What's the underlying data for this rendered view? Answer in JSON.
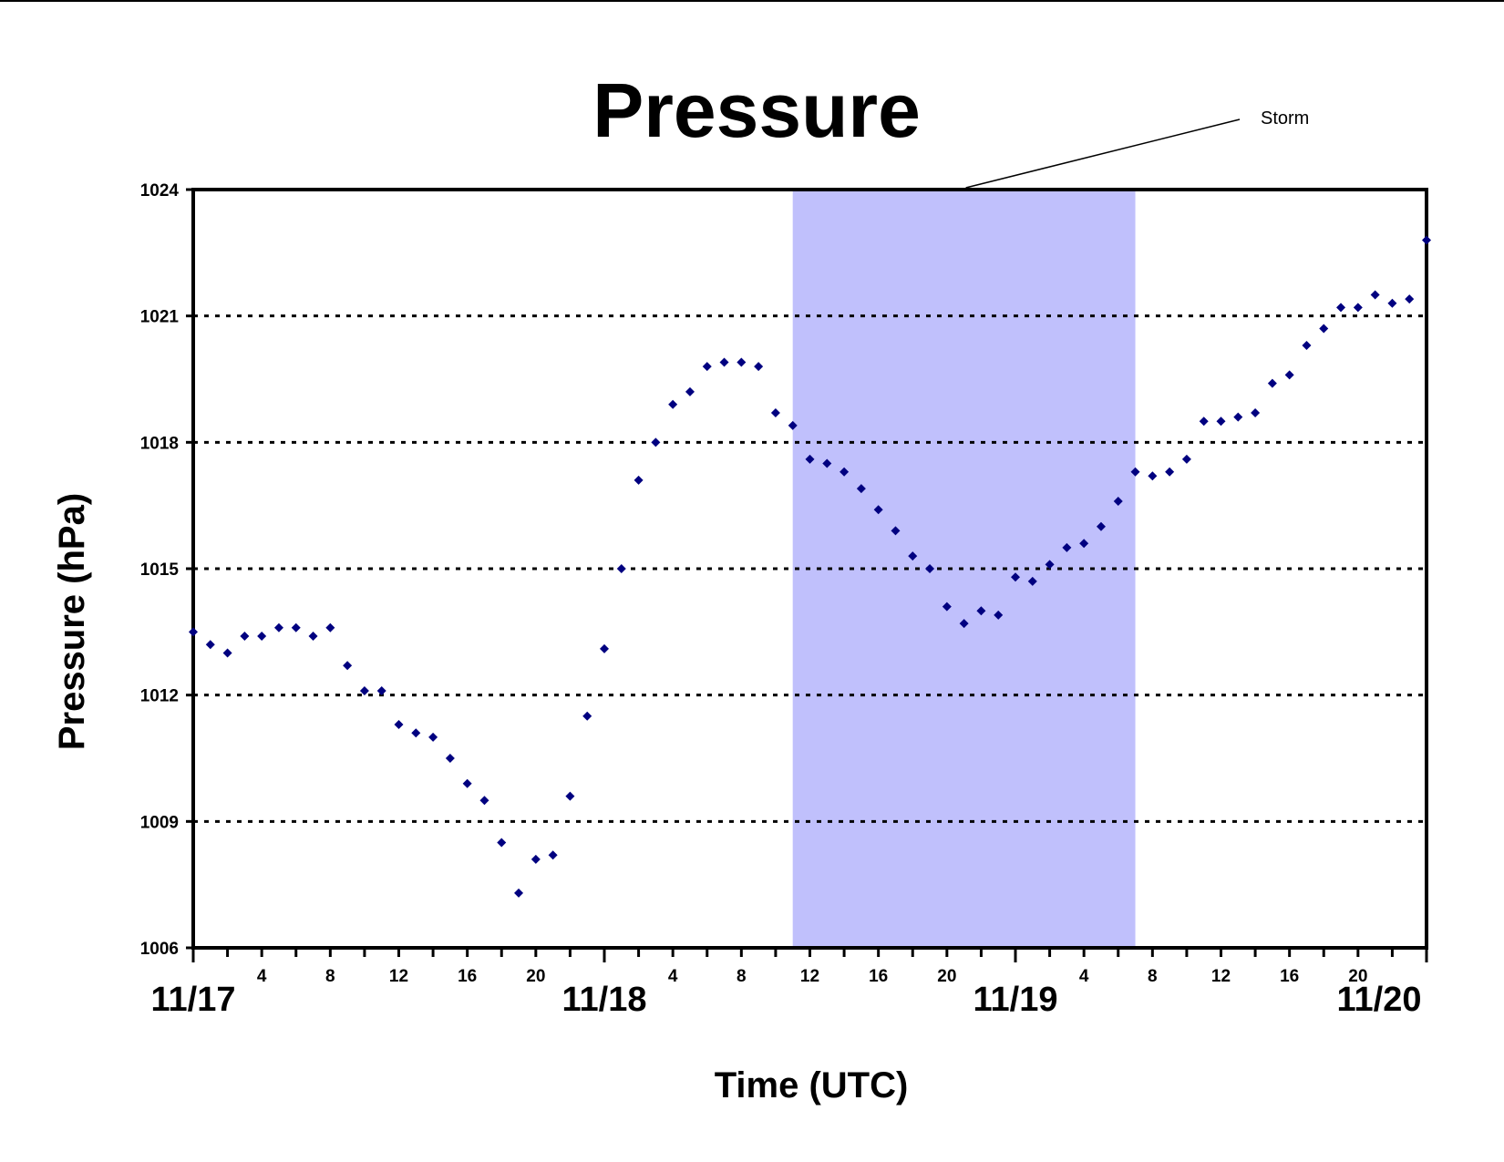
{
  "chart_data": {
    "type": "scatter",
    "title": "Pressure",
    "xlabel": "Time (UTC)",
    "ylabel": "Pressure (hPa)",
    "ylim": [
      1006,
      1024
    ],
    "yticks": [
      1006,
      1009,
      1012,
      1015,
      1018,
      1021,
      1024
    ],
    "x_start": "11/17 00:00",
    "x_hours": 72,
    "hour_tick_labels": [
      "4",
      "8",
      "12",
      "16",
      "20"
    ],
    "day_labels": [
      "11/17",
      "11/18",
      "11/19",
      "11/20"
    ],
    "grid": "horizontal dotted",
    "shaded_region": {
      "label": "Storm",
      "start_hour": 35,
      "end_hour": 55,
      "color": "#c0c0fc"
    },
    "marker_color": "#000080",
    "series": [
      {
        "x": [
          0,
          1,
          2,
          3,
          4,
          5,
          6,
          7,
          8,
          9,
          10,
          11,
          12,
          13,
          14,
          15,
          16,
          17,
          18,
          19,
          20,
          21,
          22,
          23,
          24,
          25,
          26,
          27,
          28,
          29,
          30,
          31,
          32,
          33,
          34,
          35,
          36,
          37,
          38,
          39,
          40,
          41,
          42,
          43,
          44,
          45,
          46,
          47,
          48,
          49,
          50,
          51,
          52,
          53,
          54,
          55,
          56,
          57,
          58,
          59,
          60,
          61,
          62,
          63,
          64,
          65,
          66,
          67,
          68,
          69,
          70,
          71,
          72
        ],
        "y": [
          1013.5,
          1013.2,
          1013.0,
          1013.4,
          1013.4,
          1013.6,
          1013.6,
          1013.4,
          1013.6,
          1012.7,
          1012.1,
          1012.1,
          1011.3,
          1011.1,
          1011.0,
          1010.5,
          1009.9,
          1009.5,
          1008.5,
          1007.3,
          1008.1,
          1008.2,
          1009.6,
          1011.5,
          1013.1,
          1015.0,
          1017.1,
          1018.0,
          1018.9,
          1019.2,
          1019.8,
          1019.9,
          1019.9,
          1019.8,
          1018.7,
          1018.4,
          1017.6,
          1017.5,
          1017.3,
          1016.9,
          1016.4,
          1015.9,
          1015.3,
          1015.0,
          1014.1,
          1013.7,
          1014.0,
          1013.9,
          1014.8,
          1014.7,
          1015.1,
          1015.5,
          1015.6,
          1016.0,
          1016.6,
          1017.3,
          1017.2,
          1017.3,
          1017.6,
          1018.5,
          1018.5,
          1018.6,
          1018.7,
          1019.4,
          1019.6,
          1020.3,
          1020.7,
          1021.2,
          1021.2,
          1021.5,
          1021.3,
          1021.4,
          1022.8
        ]
      }
    ]
  }
}
